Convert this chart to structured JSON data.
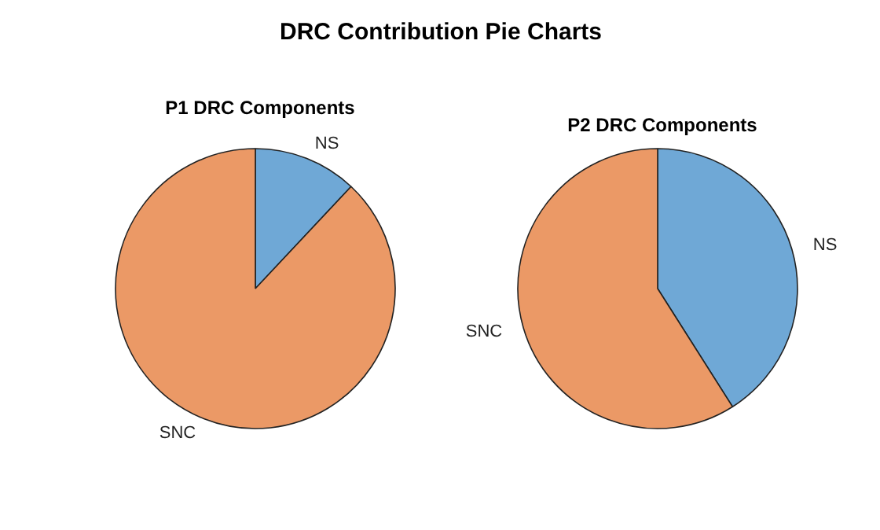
{
  "chart_data": [
    {
      "type": "pie",
      "title": "DRC Contribution Pie Charts",
      "subtitle": "P1 DRC Components",
      "categories": [
        "NS",
        "SNC"
      ],
      "values": [
        12,
        88
      ],
      "colors": [
        "#6fa8d6",
        "#eb9966"
      ]
    },
    {
      "type": "pie",
      "subtitle": "P2 DRC Components",
      "categories": [
        "NS",
        "SNC"
      ],
      "values": [
        41,
        59
      ],
      "colors": [
        "#6fa8d6",
        "#eb9966"
      ]
    }
  ]
}
